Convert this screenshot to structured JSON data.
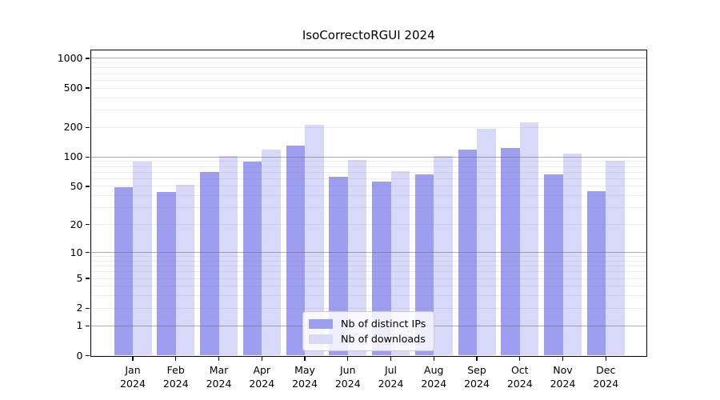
{
  "figure": {
    "title": "IsoCorrectoRGUI 2024"
  },
  "chart_data": {
    "type": "bar",
    "title": "IsoCorrectoRGUI 2024",
    "categories": [
      "Jan 2024",
      "Feb 2024",
      "Mar 2024",
      "Apr 2024",
      "May 2024",
      "Jun 2024",
      "Jul 2024",
      "Aug 2024",
      "Sep 2024",
      "Oct 2024",
      "Nov 2024",
      "Dec 2024"
    ],
    "series": [
      {
        "name": "Nb of distinct IPs",
        "color": "#9e9ef0",
        "values": [
          49,
          44,
          70,
          90,
          130,
          63,
          56,
          66,
          118,
          123,
          67,
          45
        ]
      },
      {
        "name": "Nb of downloads",
        "color": "#d8d8f8",
        "values": [
          90,
          52,
          103,
          120,
          211,
          93,
          72,
          103,
          194,
          226,
          108,
          91
        ]
      }
    ],
    "xlabel": "",
    "ylabel": "",
    "yscale": "log1p",
    "ylim": [
      0,
      1235
    ],
    "y_ticks": [
      0,
      1,
      2,
      5,
      10,
      20,
      50,
      100,
      200,
      500,
      1000
    ],
    "y_major_gridlines": [
      1,
      10,
      100,
      1000
    ],
    "grid": true,
    "legend_position": "lower center",
    "legend_entries": [
      "Nb of distinct IPs",
      "Nb of downloads"
    ]
  },
  "colors": {
    "bar_dark": "#9e9ef0",
    "bar_light": "#d8d8f8",
    "major_grid": "#696969",
    "minor_grid": "#dcdce4",
    "spine": "#000000",
    "background": "#ffffff",
    "legend_border": "#cccccc"
  }
}
